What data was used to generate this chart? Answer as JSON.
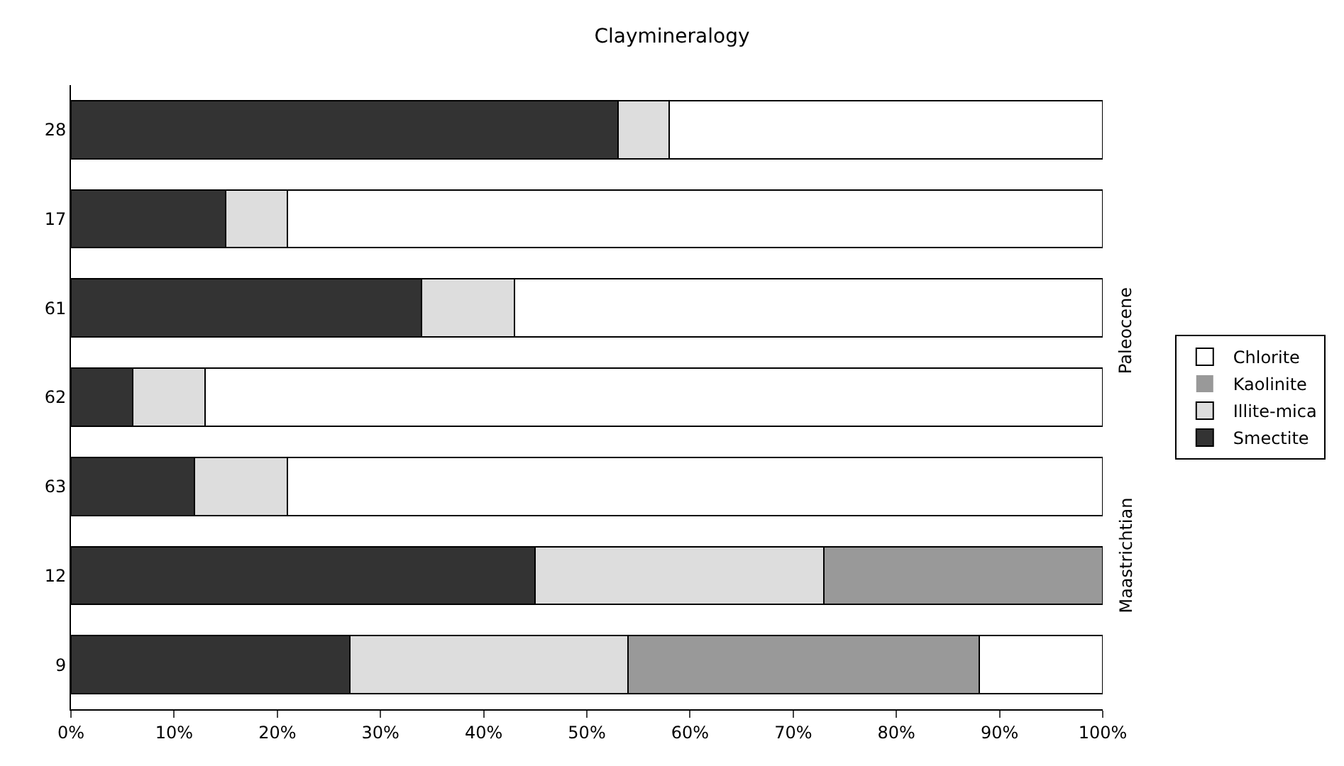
{
  "chart_data": {
    "type": "bar",
    "orientation": "horizontal",
    "stacked": true,
    "title": "Claymineralogy",
    "categories": [
      "28",
      "17",
      "61",
      "62",
      "63",
      "12",
      "9"
    ],
    "series": [
      {
        "name": "Smectite",
        "color": "#333333",
        "values": [
          53,
          15,
          34,
          6,
          12,
          45,
          27
        ]
      },
      {
        "name": "Illite-mica",
        "color": "#dddddd",
        "values": [
          5,
          6,
          9,
          7,
          9,
          28,
          27
        ]
      },
      {
        "name": "Kaolinite",
        "color": "#999999",
        "values": [
          0,
          0,
          0,
          0,
          0,
          27,
          34
        ]
      },
      {
        "name": "Chlorite",
        "color": "#ffffff",
        "values": [
          42,
          79,
          57,
          87,
          79,
          0,
          12
        ]
      }
    ],
    "xlim": [
      0,
      100
    ],
    "xticks": [
      {
        "value": 0,
        "label": "0%"
      },
      {
        "value": 10,
        "label": "10%"
      },
      {
        "value": 20,
        "label": "20%"
      },
      {
        "value": 30,
        "label": "30%"
      },
      {
        "value": 40,
        "label": "40%"
      },
      {
        "value": 50,
        "label": "50%"
      },
      {
        "value": 60,
        "label": "60%"
      },
      {
        "value": 70,
        "label": "70%"
      },
      {
        "value": 80,
        "label": "80%"
      },
      {
        "value": 90,
        "label": "90%"
      },
      {
        "value": 100,
        "label": "100%"
      }
    ],
    "annotations": [
      "Paleocene",
      "Maastrichtian"
    ],
    "legend": "right"
  }
}
